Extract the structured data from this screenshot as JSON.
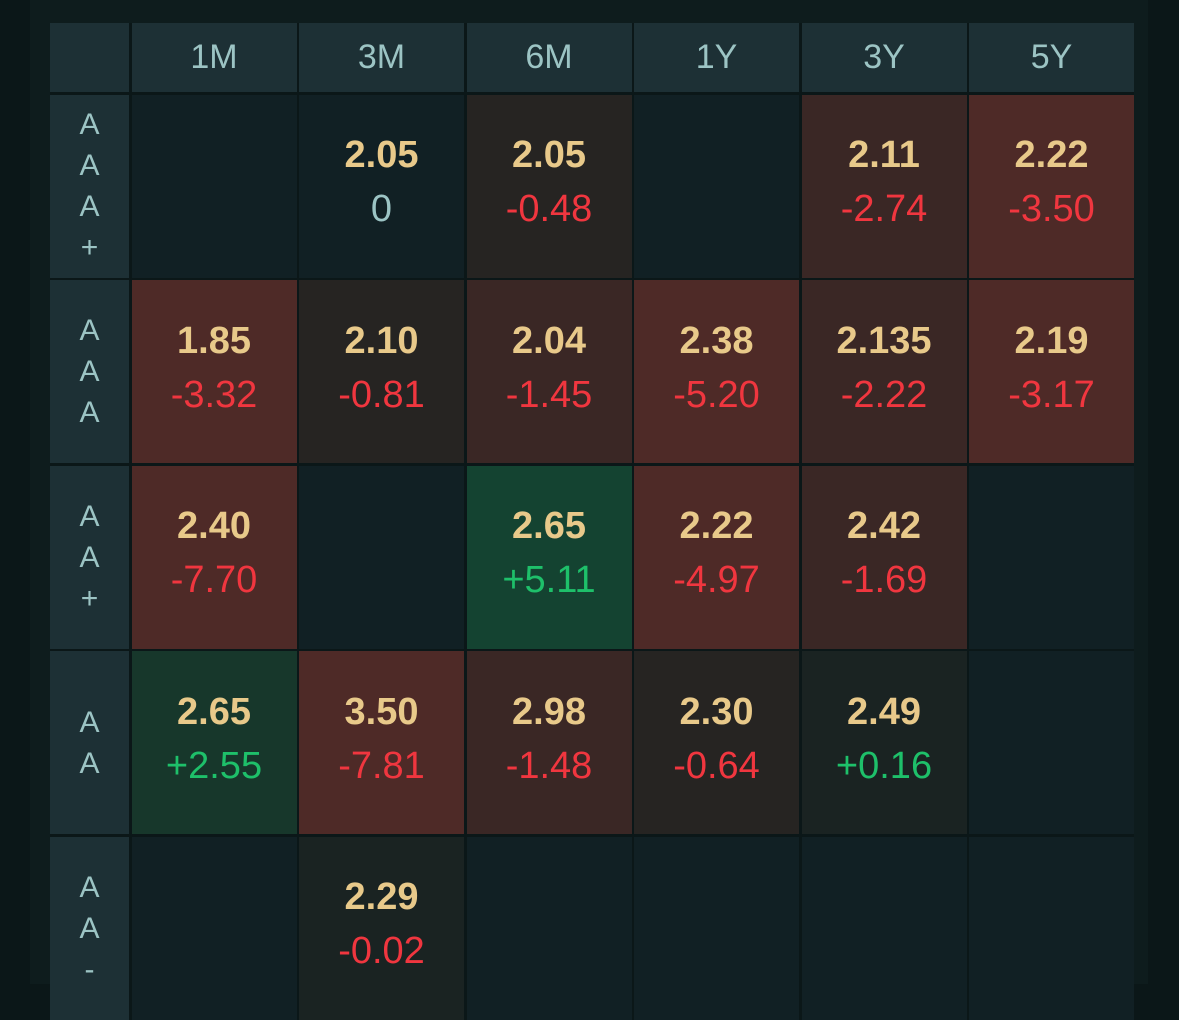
{
  "columns": [
    "1M",
    "3M",
    "6M",
    "1Y",
    "3Y",
    "5Y"
  ],
  "colors": {
    "value": "#e8c98a",
    "negative": "#f0363f",
    "positive": "#1ec06a",
    "header_bg": "#1d3035"
  },
  "rows": [
    {
      "label": [
        "A",
        "A",
        "A",
        "+"
      ],
      "cells": [
        null,
        {
          "value": "2.05",
          "change": "0",
          "tone": "empty"
        },
        {
          "value": "2.05",
          "change": "-0.48",
          "tone": "r1"
        },
        null,
        {
          "value": "2.11",
          "change": "-2.74",
          "tone": "r2"
        },
        {
          "value": "2.22",
          "change": "-3.50",
          "tone": "r3"
        }
      ]
    },
    {
      "label": [
        "A",
        "A",
        "A"
      ],
      "cells": [
        {
          "value": "1.85",
          "change": "-3.32",
          "tone": "r3"
        },
        {
          "value": "2.10",
          "change": "-0.81",
          "tone": "r1"
        },
        {
          "value": "2.04",
          "change": "-1.45",
          "tone": "r2"
        },
        {
          "value": "2.38",
          "change": "-5.20",
          "tone": "r3"
        },
        {
          "value": "2.135",
          "change": "-2.22",
          "tone": "r2"
        },
        {
          "value": "2.19",
          "change": "-3.17",
          "tone": "r3"
        }
      ]
    },
    {
      "label": [
        "A",
        "A",
        "+"
      ],
      "cells": [
        {
          "value": "2.40",
          "change": "-7.70",
          "tone": "r3"
        },
        null,
        {
          "value": "2.65",
          "change": "+5.11",
          "tone": "g2"
        },
        {
          "value": "2.22",
          "change": "-4.97",
          "tone": "r3"
        },
        {
          "value": "2.42",
          "change": "-1.69",
          "tone": "r2"
        },
        null
      ]
    },
    {
      "label": [
        "A",
        "A"
      ],
      "cells": [
        {
          "value": "2.65",
          "change": "+2.55",
          "tone": "g1"
        },
        {
          "value": "3.50",
          "change": "-7.81",
          "tone": "r3"
        },
        {
          "value": "2.98",
          "change": "-1.48",
          "tone": "r2"
        },
        {
          "value": "2.30",
          "change": "-0.64",
          "tone": "r1"
        },
        {
          "value": "2.49",
          "change": "+0.16",
          "tone": "r0"
        },
        null
      ]
    },
    {
      "label": [
        "A",
        "A",
        "-"
      ],
      "cells": [
        null,
        {
          "value": "2.29",
          "change": "-0.02",
          "tone": "r0"
        },
        null,
        null,
        null,
        null
      ]
    }
  ]
}
